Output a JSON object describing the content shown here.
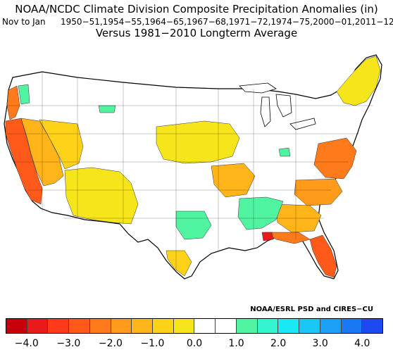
{
  "header": {
    "title": "NOAA/NCDC Climate Division Composite Precipitation Anomalies (in)",
    "period": "Nov to Jan",
    "years": "1950−51,1954−55,1964−65,1967−68,1971−72,1974−75,2000−01,2011−12",
    "versus": "Versus 1981−2010 Longterm Average"
  },
  "credit": "NOAA/ESRL PSD and CIRES−CU",
  "colorbar": {
    "colors": [
      "#c8000a",
      "#ea1a1a",
      "#ff3a1a",
      "#ff5a1a",
      "#ff7a1a",
      "#ff9a1a",
      "#ffb41a",
      "#ffd21a",
      "#f5e51a",
      "#ffffff",
      "#ffffff",
      "#4ff3a0",
      "#35f5d0",
      "#1ae8f5",
      "#1ac8f5",
      "#1aa0f5",
      "#1a78f5",
      "#1a4af0"
    ],
    "ticks": [
      {
        "label": "−4.0",
        "pos": 1
      },
      {
        "label": "−3.0",
        "pos": 3
      },
      {
        "label": "−2.0",
        "pos": 5
      },
      {
        "label": "−1.0",
        "pos": 7
      },
      {
        "label": "0.0",
        "pos": 9
      },
      {
        "label": "1.0",
        "pos": 11
      },
      {
        "label": "2.0",
        "pos": 13
      },
      {
        "label": "3.0",
        "pos": 15
      },
      {
        "label": "4.0",
        "pos": 17
      }
    ]
  },
  "regions": {
    "pacific_nw_coast": "#ff7a1a",
    "california_coast": "#ff5a1a",
    "california_interior": "#ffb41a",
    "great_basin": "#ffd21a",
    "southwest": "#f5e51a",
    "central_plains": "#f5e51a",
    "ozarks": "#ffb41a",
    "mid_atlantic": "#ff7a1a",
    "carolinas": "#ff9a1a",
    "georgia": "#ffb41a",
    "florida_panhandle": "#ff7a1a",
    "florida_peninsula": "#ff5a1a",
    "new_england": "#f5e51a",
    "texas_south": "#ffd21a",
    "lower_mississippi_wet": "#4ff3a0",
    "arkansas_wet": "#4ff3a0",
    "washington_wet": "#4ff3a0",
    "ohio_wet": "#4ff3a0",
    "gulf_red_spot": "#ea1a1a",
    "land": "#ffffff"
  }
}
